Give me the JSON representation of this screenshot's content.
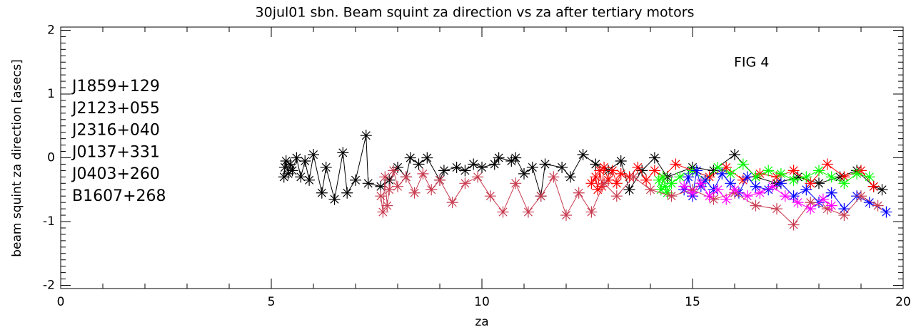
{
  "chart_data": {
    "type": "line",
    "title": "30jul01 sbn. Beam squint za direction vs za after tertiary motors",
    "annotation": "FIG   4",
    "x_label": "za",
    "y_label": "beam squint za direction [asecs]",
    "xlim": [
      0,
      20
    ],
    "xticks": [
      0,
      5,
      10,
      15,
      20
    ],
    "ylim": [
      -2.05,
      2.05
    ],
    "yticks": [
      -2,
      -1,
      0,
      1,
      2
    ],
    "legend": "upper left",
    "series": [
      {
        "name": "J1859+129",
        "color": "#000000",
        "x": [
          5.3,
          5.32,
          5.35,
          5.4,
          5.45,
          5.5,
          5.6,
          5.7,
          5.8,
          5.9,
          6.0,
          6.2,
          6.3,
          6.5,
          6.7,
          6.8,
          7.0,
          7.25,
          7.3,
          7.6,
          7.8,
          8.0,
          8.2,
          8.3,
          8.5,
          8.7,
          9.0,
          9.1,
          9.4,
          9.6,
          9.8,
          10.0,
          10.3,
          10.4,
          10.7,
          10.8,
          11.0,
          11.2,
          11.4,
          11.5,
          11.9,
          12.1,
          12.4,
          12.7,
          13.0,
          13.3,
          13.5,
          13.8,
          14.1,
          14.4,
          15.0,
          15.5,
          16.0,
          16.5,
          17.0,
          17.5,
          18.0,
          18.5,
          18.9,
          19.3,
          19.5
        ],
        "values": [
          -0.3,
          -0.15,
          -0.05,
          -0.25,
          -0.1,
          -0.2,
          0.0,
          -0.3,
          -0.05,
          -0.35,
          0.05,
          -0.55,
          -0.15,
          -0.65,
          0.08,
          -0.55,
          -0.35,
          0.35,
          -0.4,
          -0.45,
          -0.35,
          -0.15,
          -0.3,
          0.0,
          -0.1,
          0.0,
          -0.35,
          -0.2,
          -0.15,
          -0.2,
          -0.1,
          -0.15,
          -0.1,
          0.0,
          -0.05,
          0.0,
          -0.25,
          -0.15,
          -0.6,
          -0.1,
          -0.15,
          -0.3,
          0.05,
          -0.1,
          -0.2,
          -0.05,
          -0.5,
          -0.2,
          0.0,
          -0.3,
          -0.15,
          -0.2,
          0.05,
          -0.3,
          -0.4,
          -0.3,
          -0.4,
          -0.3,
          -0.2,
          -0.45,
          -0.5
        ]
      },
      {
        "name": "J2123+055",
        "color": "#ff0000",
        "x": [
          12.6,
          12.7,
          12.75,
          12.8,
          12.85,
          12.9,
          13.0,
          13.1,
          13.2,
          13.3,
          13.5,
          13.7,
          13.9,
          14.1,
          14.3,
          14.6,
          15.0,
          15.4,
          15.8,
          16.2,
          16.6,
          17.0,
          17.4,
          17.8,
          18.2,
          18.6,
          19.0,
          19.3
        ],
        "values": [
          -0.4,
          -0.3,
          -0.5,
          -0.2,
          -0.45,
          -0.15,
          -0.35,
          -0.2,
          -0.4,
          -0.25,
          -0.3,
          -0.15,
          -0.35,
          -0.2,
          -0.3,
          -0.1,
          -0.2,
          -0.3,
          -0.15,
          -0.35,
          -0.25,
          -0.3,
          -0.2,
          -0.4,
          -0.1,
          -0.3,
          -0.2,
          -0.45
        ]
      },
      {
        "name": "J2316+040",
        "color": "#00ff00",
        "x": [
          14.2,
          14.25,
          14.3,
          14.35,
          14.4,
          14.5,
          14.7,
          15.0,
          15.3,
          15.6,
          15.9,
          16.2,
          16.5,
          16.8,
          17.1,
          17.4,
          17.7,
          18.0,
          18.3,
          18.6,
          18.9,
          19.2
        ],
        "values": [
          -0.35,
          -0.5,
          -0.3,
          -0.45,
          -0.55,
          -0.4,
          -0.3,
          -0.2,
          -0.35,
          -0.15,
          -0.25,
          -0.1,
          -0.3,
          -0.2,
          -0.25,
          -0.35,
          -0.3,
          -0.2,
          -0.3,
          -0.4,
          -0.25,
          -0.3
        ]
      },
      {
        "name": "J0137+331",
        "color": "#0000ff",
        "x": [
          14.8,
          14.9,
          15.0,
          15.1,
          15.2,
          15.3,
          15.5,
          15.7,
          15.9,
          16.1,
          16.3,
          16.5,
          16.8,
          17.1,
          17.4,
          17.7,
          18.0,
          18.3,
          18.6,
          18.9,
          19.2,
          19.6
        ],
        "values": [
          -0.5,
          -0.3,
          -0.6,
          -0.2,
          -0.45,
          -0.35,
          -0.5,
          -0.25,
          -0.4,
          -0.55,
          -0.3,
          -0.45,
          -0.5,
          -0.4,
          -0.6,
          -0.5,
          -0.7,
          -0.55,
          -0.8,
          -0.6,
          -0.7,
          -0.85
        ]
      },
      {
        "name": "J0403+260",
        "color": "#c83c50",
        "x": [
          7.6,
          7.65,
          7.7,
          7.75,
          7.8,
          7.9,
          8.0,
          8.2,
          8.4,
          8.6,
          8.8,
          9.0,
          9.3,
          9.6,
          9.9,
          10.2,
          10.5,
          10.8,
          11.1,
          11.4,
          11.7,
          12.0,
          12.3,
          12.6,
          12.9,
          13.2,
          13.6,
          14.0,
          14.5,
          15.0,
          15.5,
          16.0,
          16.5,
          17.0,
          17.4,
          17.8,
          18.2,
          18.6,
          19.0,
          19.4
        ],
        "values": [
          -0.6,
          -0.85,
          -0.3,
          -0.75,
          -0.5,
          -0.2,
          -0.45,
          -0.3,
          -0.55,
          -0.25,
          -0.5,
          -0.35,
          -0.7,
          -0.4,
          -0.3,
          -0.6,
          -0.85,
          -0.4,
          -0.85,
          -0.6,
          -0.3,
          -0.9,
          -0.55,
          -0.85,
          -0.4,
          -0.6,
          -0.3,
          -0.5,
          -0.6,
          -0.5,
          -0.65,
          -0.55,
          -0.75,
          -0.8,
          -1.05,
          -0.7,
          -0.8,
          -0.9,
          -0.6,
          -0.75
        ]
      },
      {
        "name": "B1607+268",
        "color": "#ff00ff",
        "x": [
          14.8,
          15.0,
          15.2,
          15.4,
          15.6,
          15.8,
          16.0,
          16.3,
          16.6,
          16.9,
          17.2,
          17.5,
          17.8,
          18.1,
          18.3
        ],
        "values": [
          -0.45,
          -0.55,
          -0.4,
          -0.6,
          -0.5,
          -0.65,
          -0.5,
          -0.6,
          -0.55,
          -0.45,
          -0.6,
          -0.7,
          -0.8,
          -0.65,
          -0.75
        ]
      }
    ]
  }
}
